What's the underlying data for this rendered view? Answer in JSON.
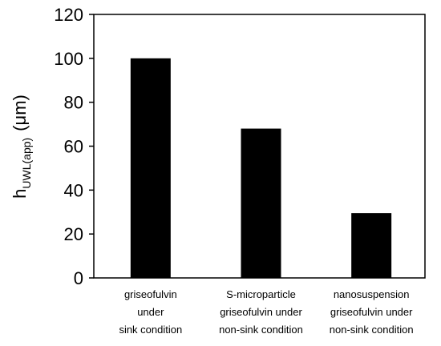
{
  "chart_data": {
    "type": "bar",
    "title": "",
    "categories": [
      [
        "griseofulvin",
        "under",
        "sink condition"
      ],
      [
        "S-microparticle",
        "griseofulvin under",
        "non-sink condition"
      ],
      [
        "nanosuspension",
        "griseofulvin under",
        "non-sink condition"
      ]
    ],
    "values": [
      100,
      68,
      29.5
    ],
    "ylim": [
      0,
      120
    ],
    "yticks": [
      0,
      20,
      40,
      60,
      80,
      100,
      120
    ],
    "ylabel": {
      "base": "h",
      "subscript": "UWL(app)",
      "unit": "(μm)"
    },
    "xlabel": "",
    "grid": false,
    "legend": "none",
    "bar_color": "#000000"
  }
}
